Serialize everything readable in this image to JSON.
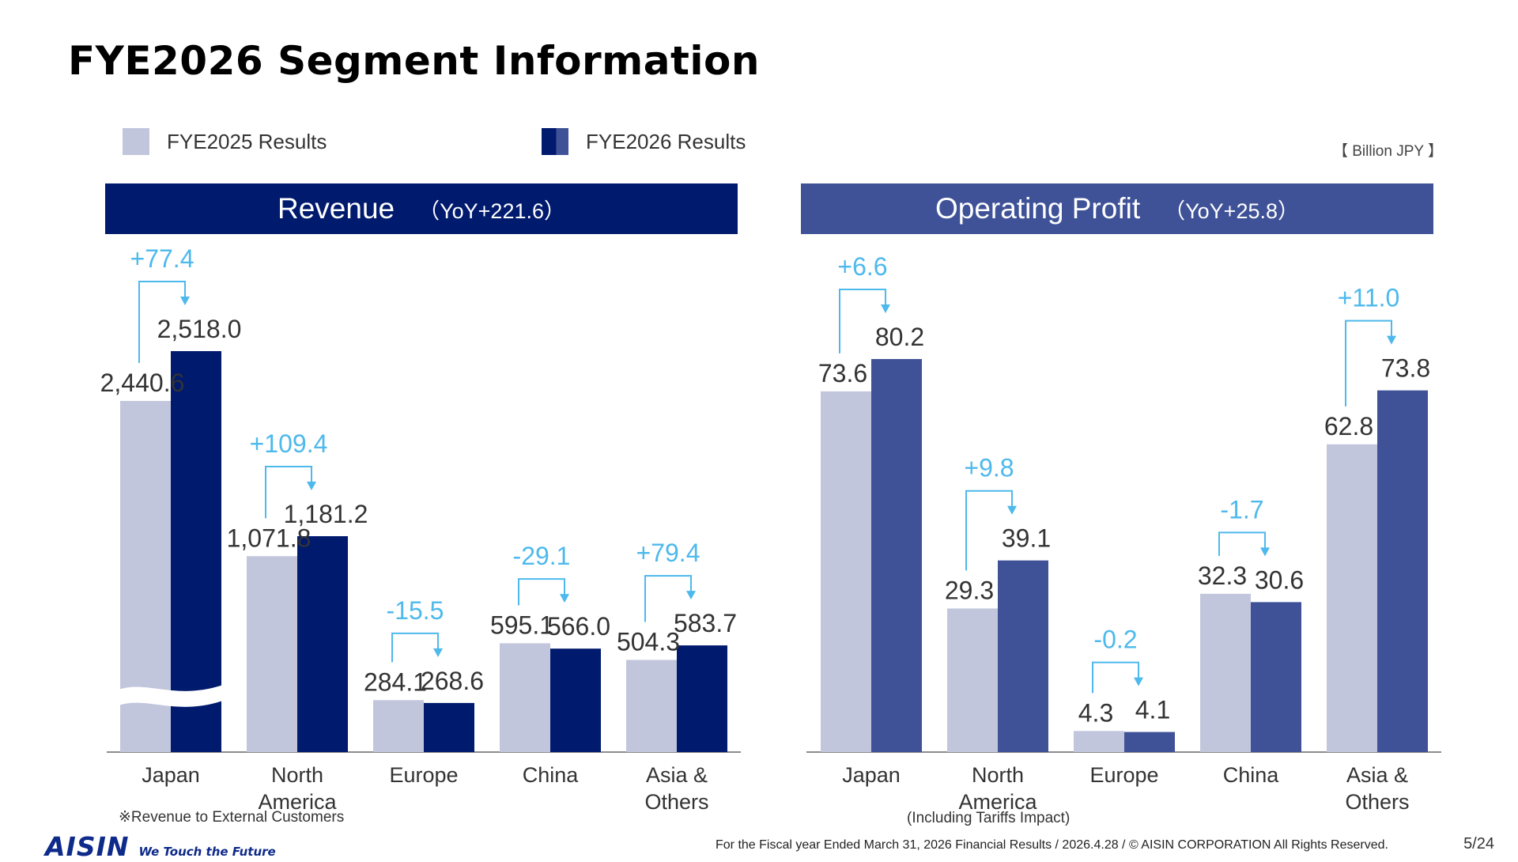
{
  "title": "FYE2026 Segment Information",
  "legend": [
    {
      "label": "FYE2025 Results",
      "color": "#c1c6dc"
    },
    {
      "label": "FYE2026 Results",
      "color": "#001a6e"
    }
  ],
  "unit": "【 Billion JPY 】",
  "revenue": {
    "header_title": "Revenue",
    "header_yoy": "（YoY+221.6）",
    "note": "※Revenue to External Customers"
  },
  "profit": {
    "header_title": "Operating Profit",
    "header_yoy": "（YoY+25.8）",
    "note": "(Including Tariffs Impact)"
  },
  "chart_data": [
    {
      "type": "bar",
      "title": "Revenue",
      "categories": [
        "Japan",
        "North America",
        "Europe",
        "China",
        "Asia & Others"
      ],
      "category_lines": [
        [
          "Japan"
        ],
        [
          "North",
          "America"
        ],
        [
          "Europe"
        ],
        [
          "China"
        ],
        [
          "Asia &",
          "Others"
        ]
      ],
      "series": [
        {
          "name": "FYE2025 Results",
          "values": [
            2440.6,
            1071.8,
            284.1,
            595.1,
            504.3
          ],
          "color": "#c1c6dc"
        },
        {
          "name": "FYE2026 Results",
          "values": [
            2518.0,
            1181.2,
            268.6,
            566.0,
            583.7
          ],
          "color": "#001a6e"
        }
      ],
      "value_labels_prev": [
        "2,440.6",
        "1,071.8",
        "284.1",
        "595.1",
        "504.3"
      ],
      "value_labels_curr": [
        "2,518.0",
        "1,181.2",
        "268.6",
        "566.0",
        "583.7"
      ],
      "deltas": [
        "+77.4",
        "+109.4",
        "-15.5",
        "-29.1",
        "+79.4"
      ],
      "broken_axis": "Japan",
      "grid": false
    },
    {
      "type": "bar",
      "title": "Operating Profit",
      "categories": [
        "Japan",
        "North America",
        "Europe",
        "China",
        "Asia & Others"
      ],
      "category_lines": [
        [
          "Japan"
        ],
        [
          "North",
          "America"
        ],
        [
          "Europe"
        ],
        [
          "China"
        ],
        [
          "Asia &",
          "Others"
        ]
      ],
      "series": [
        {
          "name": "FYE2025 Results",
          "values": [
            73.6,
            29.3,
            4.3,
            32.3,
            62.8
          ],
          "color": "#c1c6dc"
        },
        {
          "name": "FYE2026 Results",
          "values": [
            80.2,
            39.1,
            4.1,
            30.6,
            73.8
          ],
          "color": "#3f5298"
        }
      ],
      "value_labels_prev": [
        "73.6",
        "29.3",
        "4.3",
        "32.3",
        "62.8"
      ],
      "value_labels_curr": [
        "80.2",
        "39.1",
        "4.1",
        "30.6",
        "73.8"
      ],
      "deltas": [
        "+6.6",
        "+9.8",
        "-0.2",
        "-1.7",
        "+11.0"
      ],
      "grid": false
    }
  ],
  "footer": {
    "logo": "AISIN",
    "tagline": "We Touch the Future",
    "text": "For the Fiscal year Ended March 31, 2026 Financial Results / 2026.4.28 / © AISIN CORPORATION All Rights Reserved.",
    "page": "5/24"
  }
}
